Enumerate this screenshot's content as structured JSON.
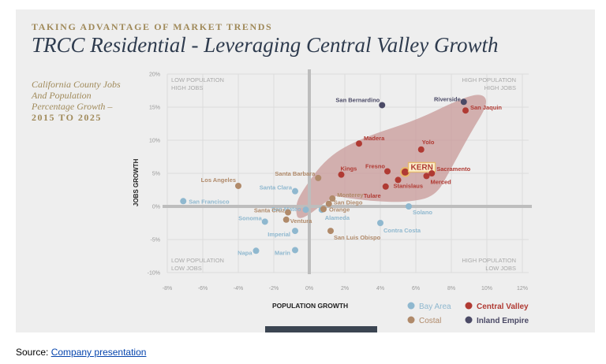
{
  "header": {
    "kicker": "TAKING ADVANTAGE OF MARKET TRENDS",
    "title": "TRCC Residential - Leveraging Central Valley Growth",
    "subtitle": "California County Jobs And Population Percentage Growth –",
    "subtitle_range": "2015 TO 2025"
  },
  "source": {
    "prefix": "Source: ",
    "link_text": "Company presentation"
  },
  "chart_data": {
    "type": "scatter",
    "xlabel": "POPULATION GROWTH",
    "ylabel": "JOBS GROWTH",
    "xlim": [
      -8,
      12
    ],
    "ylim": [
      -10,
      20
    ],
    "x_ticks": [
      "-8%",
      "-6%",
      "-4%",
      "-2%",
      "0%",
      "2%",
      "4%",
      "6%",
      "8%",
      "10%",
      "12%"
    ],
    "y_ticks": [
      "20%",
      "15%",
      "10%",
      "5%",
      "0%",
      "-5%",
      "-10%"
    ],
    "grid": true,
    "quadrant_labels": {
      "top_left": [
        "LOW POPULATION",
        "HIGH JOBS"
      ],
      "top_right": [
        "HIGH POPULATION",
        "HIGH JOBS"
      ],
      "bottom_left": [
        "LOW POPULATION",
        "LOW JOBS"
      ],
      "bottom_right": [
        "HIGH POPULATION",
        "LOW JOBS"
      ]
    },
    "legend": [
      {
        "name": "Bay Area",
        "color": "#8fb8cf"
      },
      {
        "name": "Central Valley",
        "color": "#b03a33"
      },
      {
        "name": "Costal",
        "color": "#b08a6a"
      },
      {
        "name": "Inland Empire",
        "color": "#4b4a66"
      }
    ],
    "legend_position": "bottom-right",
    "highlight": {
      "label": "KERN",
      "color": "#e8b868"
    },
    "series": [
      {
        "name": "Bay Area",
        "color": "#8fb8cf",
        "points": [
          {
            "label": "San Francisco",
            "x": -7.1,
            "y": 0.8
          },
          {
            "label": "Santa Clara",
            "x": -0.8,
            "y": 2.3
          },
          {
            "label": "San Mateo",
            "x": -0.2,
            "y": -0.5
          },
          {
            "label": "Sonoma",
            "x": -2.5,
            "y": -2.3
          },
          {
            "label": "Imperial",
            "x": -0.8,
            "y": -3.7
          },
          {
            "label": "Napa",
            "x": -3.0,
            "y": -6.7
          },
          {
            "label": "Marin",
            "x": -0.8,
            "y": -6.6
          },
          {
            "label": "Alameda",
            "x": 0.7,
            "y": -0.5
          },
          {
            "label": "Contra Costa",
            "x": 4.0,
            "y": -2.5
          },
          {
            "label": "Solano",
            "x": 5.6,
            "y": 0.0
          }
        ]
      },
      {
        "name": "Central Valley",
        "color": "#b03a33",
        "points": [
          {
            "label": "San Jaquin",
            "x": 8.8,
            "y": 14.5
          },
          {
            "label": "Madera",
            "x": 2.8,
            "y": 9.5
          },
          {
            "label": "Yolo",
            "x": 6.3,
            "y": 8.6
          },
          {
            "label": "Kings",
            "x": 1.8,
            "y": 4.8
          },
          {
            "label": "Fresno",
            "x": 4.4,
            "y": 5.3
          },
          {
            "label": "KERN",
            "x": 5.4,
            "y": 5.2
          },
          {
            "label": "Sacramento",
            "x": 6.9,
            "y": 5.0
          },
          {
            "label": "Merced",
            "x": 6.6,
            "y": 4.6
          },
          {
            "label": "Stanislaus",
            "x": 5.0,
            "y": 4.0
          },
          {
            "label": "Tulare",
            "x": 4.3,
            "y": 3.0
          }
        ]
      },
      {
        "name": "Costal",
        "color": "#b08a6a",
        "points": [
          {
            "label": "Los Angeles",
            "x": -4.0,
            "y": 3.1
          },
          {
            "label": "Santa Barbara",
            "x": 0.5,
            "y": 4.3
          },
          {
            "label": "Monterey",
            "x": 1.3,
            "y": 1.2
          },
          {
            "label": "San Diego",
            "x": 1.1,
            "y": 0.4
          },
          {
            "label": "Orange",
            "x": 0.8,
            "y": -0.4
          },
          {
            "label": "Santa Cruz",
            "x": -1.2,
            "y": -0.9
          },
          {
            "label": "Ventura",
            "x": -1.3,
            "y": -2.0
          },
          {
            "label": "San Luis Obispo",
            "x": 1.2,
            "y": -3.7
          }
        ]
      },
      {
        "name": "Inland Empire",
        "color": "#4b4a66",
        "points": [
          {
            "label": "San Bernardino",
            "x": 4.1,
            "y": 15.3
          },
          {
            "label": "Riverside",
            "x": 8.7,
            "y": 15.8
          }
        ]
      }
    ]
  }
}
